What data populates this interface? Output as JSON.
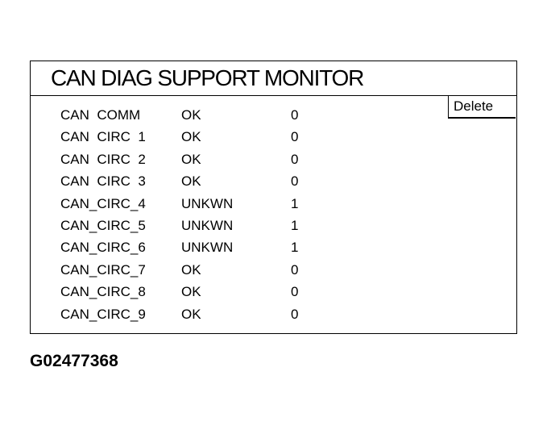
{
  "title": "CAN DIAG SUPPORT MONITOR",
  "delete_label": "Delete",
  "rows": [
    {
      "name": "CAN  COMM",
      "status": "OK",
      "count": "0"
    },
    {
      "name": "CAN  CIRC  1",
      "status": "OK",
      "count": "0"
    },
    {
      "name": "CAN  CIRC  2",
      "status": "OK",
      "count": "0"
    },
    {
      "name": "CAN  CIRC  3",
      "status": "OK",
      "count": "0"
    },
    {
      "name": "CAN_CIRC_4",
      "status": "UNKWN",
      "count": "1"
    },
    {
      "name": "CAN_CIRC_5",
      "status": "UNKWN",
      "count": "1"
    },
    {
      "name": "CAN_CIRC_6",
      "status": "UNKWN",
      "count": "1"
    },
    {
      "name": "CAN_CIRC_7",
      "status": "OK",
      "count": "0"
    },
    {
      "name": "CAN_CIRC_8",
      "status": "OK",
      "count": "0"
    },
    {
      "name": "CAN_CIRC_9",
      "status": "OK",
      "count": "0"
    }
  ],
  "figure_code": "G02477368"
}
